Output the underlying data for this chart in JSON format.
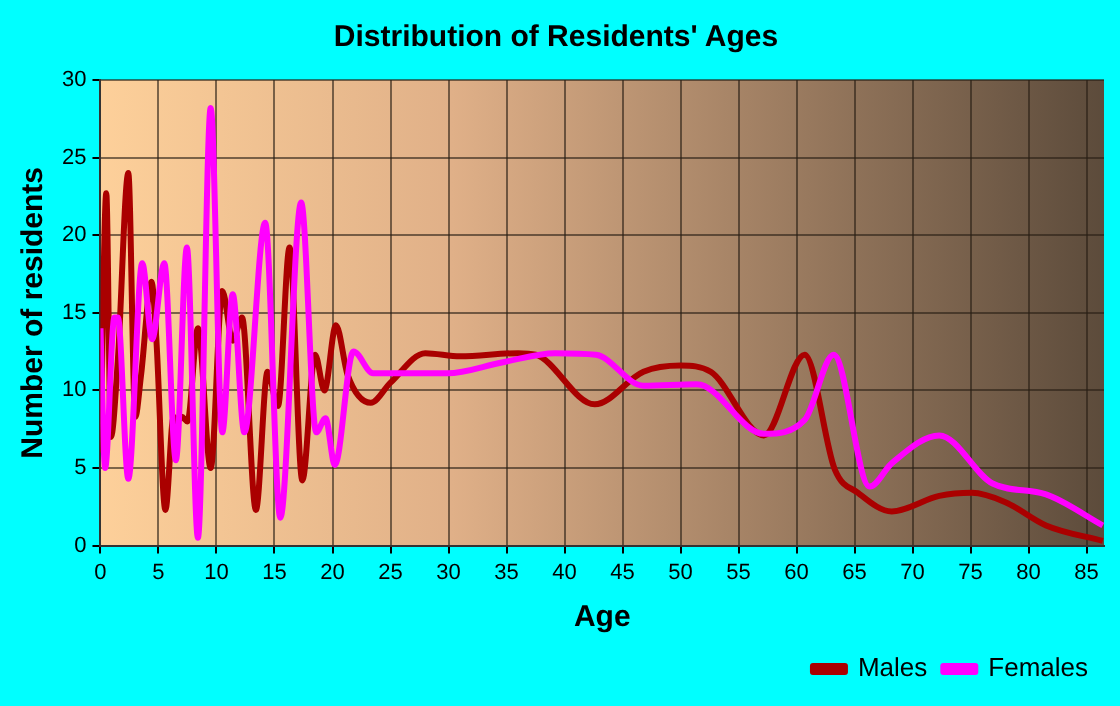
{
  "chart_data": {
    "type": "line",
    "title": "Distribution of Residents' Ages",
    "xlabel": "Age",
    "ylabel": "Number of residents",
    "xlim": [
      0,
      86.5
    ],
    "xticks": [
      0,
      5,
      10,
      15,
      20,
      25,
      30,
      35,
      40,
      45,
      50,
      55,
      60,
      65,
      70,
      75,
      80,
      85
    ],
    "ylim": [
      0,
      30
    ],
    "yticks": [
      0,
      5,
      10,
      15,
      20,
      25,
      30
    ],
    "grid": true,
    "legend": "bottom right",
    "marker": "none",
    "line_style": "solid",
    "series": [
      {
        "name": "Males",
        "color": "#aa0000",
        "x": [
          0,
          0.5,
          0.9,
          1.5,
          2.4,
          3,
          3.5,
          4.4,
          4.8,
          5.6,
          6.3,
          6.6,
          7,
          7.5,
          8.4,
          9.5,
          10.5,
          11.4,
          12.2,
          13.4,
          14.4,
          15.3,
          16.3,
          17.4,
          18.5,
          19.3,
          20.3,
          21.3,
          23.3,
          25,
          28,
          31,
          36,
          37.5,
          42.6,
          46.8,
          50,
          52.6,
          57.2,
          60.7,
          63.3,
          65.3,
          68.2,
          72.3,
          75.1,
          78,
          81.5,
          86.4
        ],
        "values": [
          6,
          22.7,
          7,
          12,
          24,
          8.3,
          11,
          17,
          13.5,
          2.3,
          8.3,
          8,
          8.3,
          8,
          14,
          5,
          16.4,
          13.2,
          14.7,
          2.3,
          11.2,
          9,
          19.2,
          4.2,
          12.3,
          10,
          14.2,
          11,
          9.2,
          10.5,
          12.4,
          12.2,
          12.4,
          12.3,
          9.1,
          11.2,
          11.6,
          11.2,
          7.1,
          12.3,
          4.9,
          3.4,
          2.2,
          3.2,
          3.4,
          2.8,
          1.3,
          0.3
        ]
      },
      {
        "name": "Females",
        "color": "#ff00ff",
        "x": [
          0,
          0.4,
          1.2,
          1.5,
          2.4,
          3.6,
          4.45,
          5.5,
          6.5,
          7.45,
          8.4,
          9.5,
          10.5,
          11.4,
          12.4,
          14.2,
          15.5,
          17.3,
          18.6,
          19.4,
          20.2,
          21.8,
          23.5,
          29.9,
          34.6,
          39.2,
          42.7,
          46.8,
          51.4,
          57.2,
          60.7,
          63.2,
          66.3,
          68.2,
          72.3,
          76.9,
          81.5,
          86.4
        ],
        "values": [
          14,
          5,
          14.7,
          14.7,
          4.3,
          18.2,
          13.3,
          18.2,
          5.5,
          19.2,
          0.5,
          28.2,
          7.3,
          16.2,
          7.3,
          20.8,
          1.8,
          22.1,
          7.3,
          8.2,
          5.2,
          12.5,
          11.1,
          11.1,
          11.8,
          12.4,
          12.3,
          10.3,
          10.4,
          7.2,
          8.1,
          12.3,
          3.8,
          5.3,
          7.1,
          4,
          3.3,
          1.3
        ]
      }
    ]
  }
}
